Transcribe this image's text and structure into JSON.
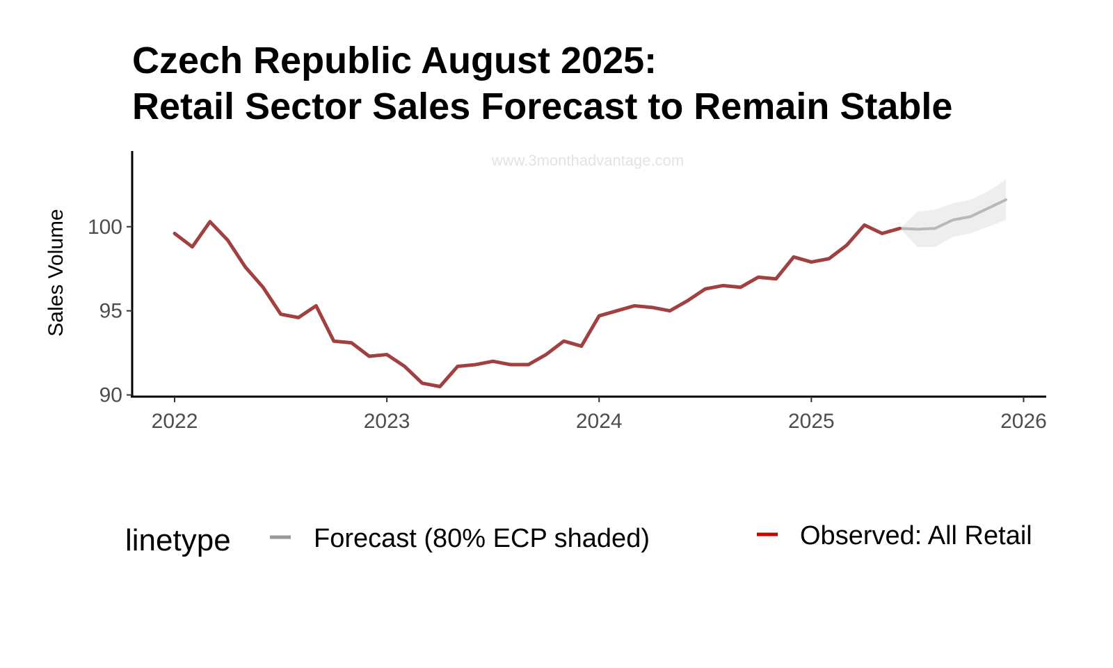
{
  "chart_data": {
    "type": "line",
    "title": [
      "Czech Republic August 2025:",
      "Retail Sector Sales Forecast to Remain Stable"
    ],
    "watermark": "www.3monthadvantage.com",
    "ylabel": "Sales Volume",
    "xlabel": "",
    "xlim": [
      2021.8,
      2026.1
    ],
    "ylim": [
      89.9,
      104.5
    ],
    "x_ticks": [
      {
        "value": 2022,
        "label": "2022"
      },
      {
        "value": 2023,
        "label": "2023"
      },
      {
        "value": 2024,
        "label": "2024"
      },
      {
        "value": 2025,
        "label": "2025"
      },
      {
        "value": 2026,
        "label": "2026"
      }
    ],
    "y_ticks": [
      {
        "value": 90,
        "label": "90"
      },
      {
        "value": 95,
        "label": "95"
      },
      {
        "value": 100,
        "label": "100"
      }
    ],
    "grid": false,
    "legend": {
      "position": "bottom",
      "title": "linetype",
      "items": [
        {
          "label": "Forecast (80% ECP shaded)",
          "color": "#999999"
        },
        {
          "label": "Observed: All Retail",
          "color": "#cc0000"
        }
      ]
    },
    "series": [
      {
        "name": "Observed: All Retail",
        "color": "#a04040",
        "x": [
          "2022-01",
          "2022-02",
          "2022-03",
          "2022-04",
          "2022-05",
          "2022-06",
          "2022-07",
          "2022-08",
          "2022-09",
          "2022-10",
          "2022-11",
          "2022-12",
          "2023-01",
          "2023-02",
          "2023-03",
          "2023-04",
          "2023-05",
          "2023-06",
          "2023-07",
          "2023-08",
          "2023-09",
          "2023-10",
          "2023-11",
          "2023-12",
          "2024-01",
          "2024-02",
          "2024-03",
          "2024-04",
          "2024-05",
          "2024-06",
          "2024-07",
          "2024-08",
          "2024-09",
          "2024-10",
          "2024-11",
          "2024-12",
          "2025-01",
          "2025-02",
          "2025-03",
          "2025-04",
          "2025-05",
          "2025-06"
        ],
        "values": [
          99.6,
          98.8,
          100.3,
          99.2,
          97.6,
          96.4,
          94.8,
          94.6,
          95.3,
          93.2,
          93.1,
          92.3,
          92.4,
          91.7,
          90.7,
          90.5,
          91.7,
          91.8,
          92.0,
          91.8,
          91.8,
          92.4,
          93.2,
          92.9,
          94.7,
          95.0,
          95.3,
          95.2,
          95.0,
          95.6,
          96.3,
          96.5,
          96.4,
          97.0,
          96.9,
          98.2,
          97.9,
          98.1,
          98.9,
          100.1,
          99.6,
          99.9
        ]
      },
      {
        "name": "Forecast (80% ECP shaded)",
        "color": "#b8b8b8",
        "x": [
          "2025-06",
          "2025-07",
          "2025-08",
          "2025-09",
          "2025-10",
          "2025-11",
          "2025-12"
        ],
        "values": [
          99.9,
          99.85,
          99.9,
          100.4,
          100.6,
          101.1,
          101.6
        ],
        "lower": [
          99.9,
          98.8,
          98.8,
          99.4,
          99.6,
          100.0,
          100.4
        ],
        "upper": [
          99.9,
          100.9,
          101.0,
          101.4,
          101.6,
          102.1,
          102.8
        ]
      }
    ]
  }
}
